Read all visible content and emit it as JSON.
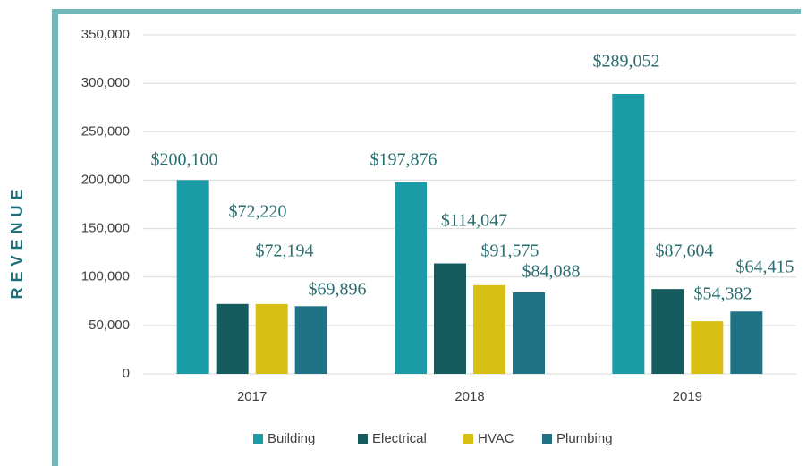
{
  "chart_data": {
    "type": "bar",
    "y_label": "REVENUE",
    "categories": [
      "2017",
      "2018",
      "2019"
    ],
    "series": [
      {
        "name": "Building",
        "color": "#1a9ba5",
        "values": [
          200100,
          197876,
          289052
        ],
        "value_labels": [
          "$200,100",
          "$197,876",
          "$289,052"
        ]
      },
      {
        "name": "Electrical",
        "color": "#165c5f",
        "values": [
          72220,
          114047,
          87604
        ],
        "value_labels": [
          "$72,220",
          "$114,047",
          "$87,604"
        ]
      },
      {
        "name": "HVAC",
        "color": "#d8bf14",
        "values": [
          72194,
          91575,
          54382
        ],
        "value_labels": [
          "$72,194",
          "$91,575",
          "$54,382"
        ]
      },
      {
        "name": "Plumbing",
        "color": "#1f7385",
        "values": [
          69896,
          84088,
          64415
        ],
        "value_labels": [
          "$69,896",
          "$84,088",
          "$64,415"
        ]
      }
    ],
    "ylim": [
      0,
      350000
    ],
    "yticks": [
      0,
      {
        "value": 50000,
        "label": "50,000"
      },
      {
        "value": 100000,
        "label": "100,000"
      },
      {
        "value": 150000,
        "label": "150,000"
      },
      {
        "value": 200000,
        "label": "200,000"
      },
      {
        "value": 250000,
        "label": "250,000"
      },
      {
        "value": 300000,
        "label": "300,000"
      },
      {
        "value": 350000,
        "label": "350,000"
      }
    ],
    "grid": true,
    "legend": "bottom"
  }
}
